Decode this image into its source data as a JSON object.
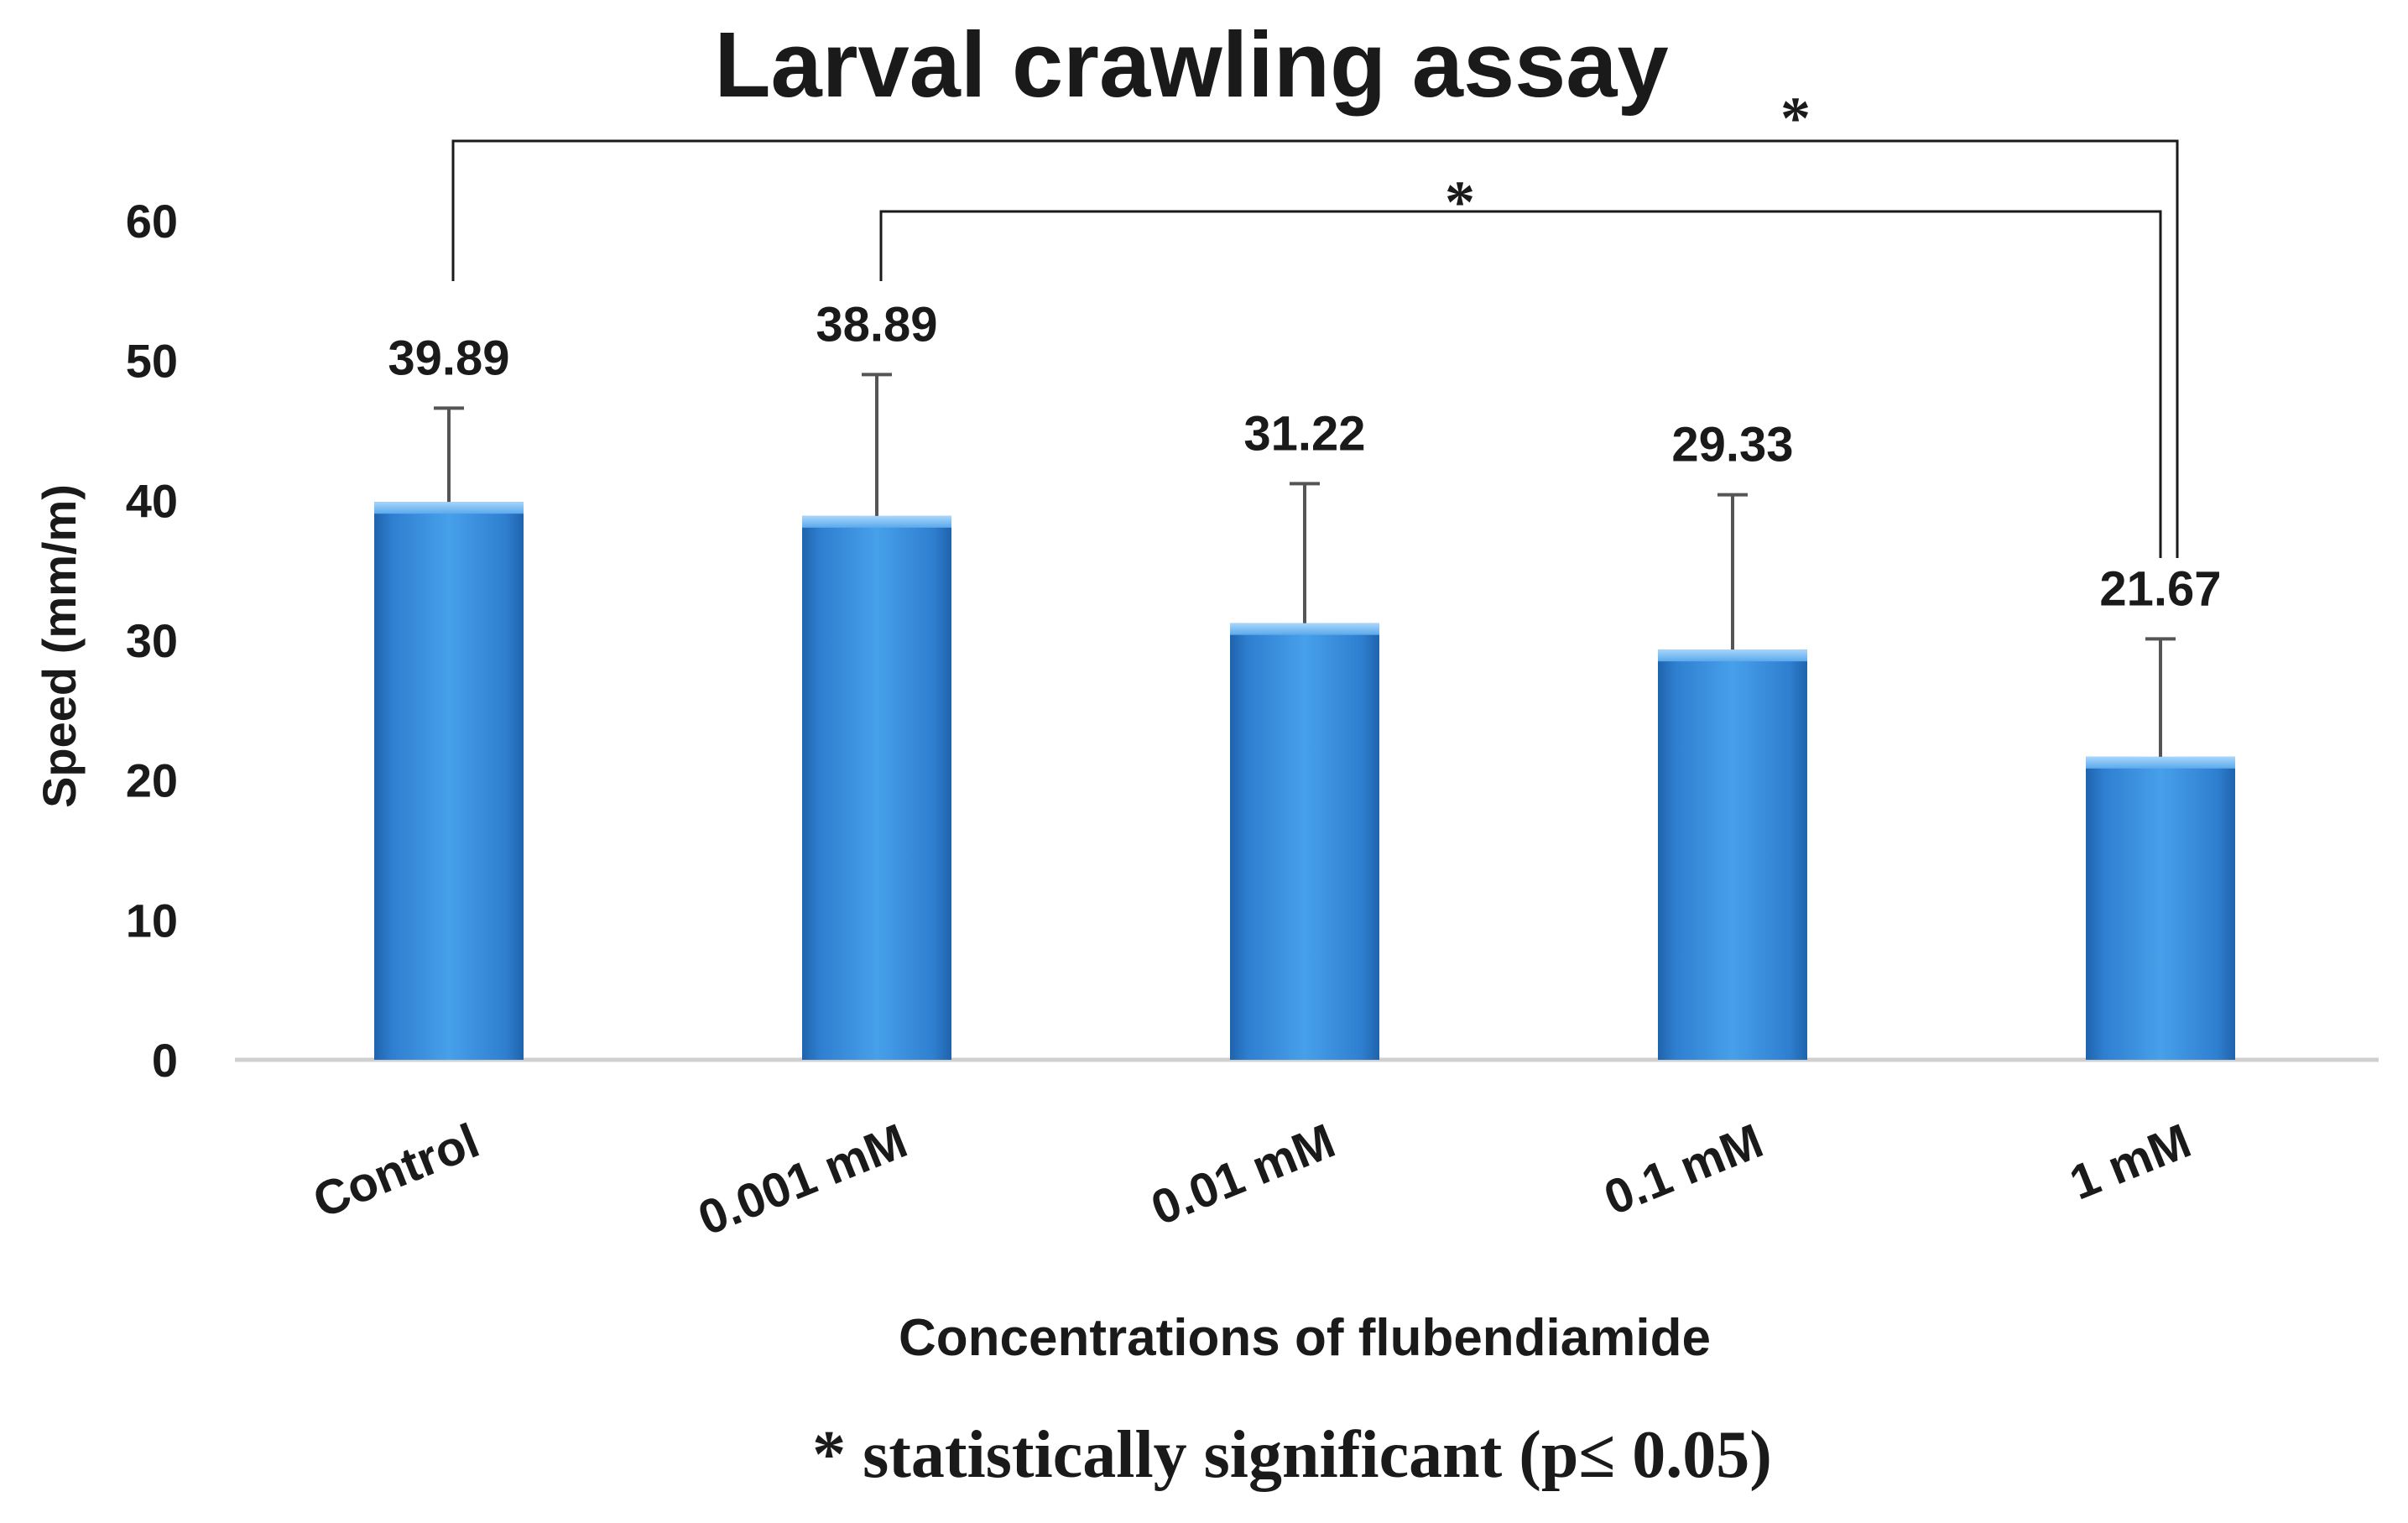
{
  "chart_data": {
    "type": "bar",
    "title": "Larval crawling assay",
    "xlabel": "Concentrations of flubendiamide",
    "ylabel": "Speed (mm/m)",
    "ylim": [
      0,
      60
    ],
    "yticks": [
      "0",
      "10",
      "20",
      "30",
      "40",
      "50",
      "60"
    ],
    "categories": [
      "Control",
      "0.001 mM",
      "0.01 mM",
      "0.1 mM",
      "1 mM"
    ],
    "values": [
      39.89,
      38.89,
      31.22,
      29.33,
      21.67
    ],
    "value_labels": [
      "39.89",
      "38.89",
      "31.22",
      "29.33",
      "21.67"
    ],
    "error_upper": [
      46.6,
      49.0,
      41.2,
      40.4,
      30.1
    ],
    "grid": false,
    "legend": "none",
    "significance": [
      {
        "from": "Control",
        "to": "1 mM",
        "label": "*"
      },
      {
        "from": "0.001 mM",
        "to": "1 mM",
        "label": "*"
      }
    ],
    "footnote": "* statistically significant (p≤ 0.05)",
    "colors": {
      "bar": "#3d8fdc",
      "bar_dark": "#1f63ad",
      "bar_light": "#8cc6f5",
      "text": "#1a1a1a",
      "axis": "#d0d0d0",
      "error": "#555555"
    }
  }
}
